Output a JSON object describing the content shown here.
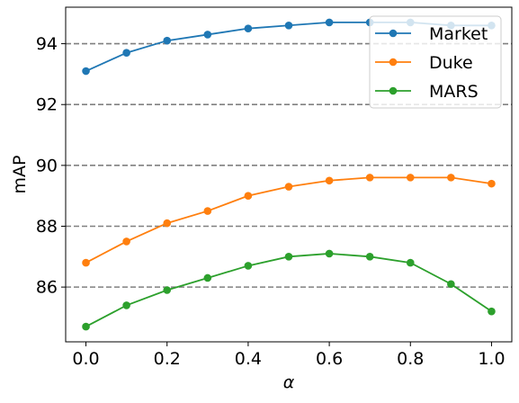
{
  "chart_data": {
    "type": "line",
    "xlabel": "α",
    "ylabel": "mAP",
    "x": [
      0.0,
      0.1,
      0.2,
      0.3,
      0.4,
      0.5,
      0.6,
      0.7,
      0.8,
      0.9,
      1.0
    ],
    "xlim": [
      -0.05,
      1.05
    ],
    "ylim": [
      84.2,
      95.2
    ],
    "x_ticks": [
      {
        "value": 0.0,
        "label": "0.0"
      },
      {
        "value": 0.2,
        "label": "0.2"
      },
      {
        "value": 0.4,
        "label": "0.4"
      },
      {
        "value": 0.6,
        "label": "0.6"
      },
      {
        "value": 0.8,
        "label": "0.8"
      },
      {
        "value": 1.0,
        "label": "1.0"
      }
    ],
    "y_ticks": [
      {
        "value": 86,
        "label": "86"
      },
      {
        "value": 88,
        "label": "88"
      },
      {
        "value": 90,
        "label": "90"
      },
      {
        "value": 92,
        "label": "92"
      },
      {
        "value": 94,
        "label": "94"
      }
    ],
    "grid": "horizontal dashed",
    "grid_color": "#808080",
    "legend_position": "top-right",
    "series": [
      {
        "name": "Market",
        "color": "#1f77b4",
        "values": [
          93.1,
          93.7,
          94.1,
          94.3,
          94.5,
          94.6,
          94.7,
          94.7,
          94.7,
          94.6,
          94.6
        ]
      },
      {
        "name": "Duke",
        "color": "#ff7f0e",
        "values": [
          86.8,
          87.5,
          88.1,
          88.5,
          89.0,
          89.3,
          89.5,
          89.6,
          89.6,
          89.6,
          89.4
        ]
      },
      {
        "name": "MARS",
        "color": "#2ca02c",
        "values": [
          84.7,
          85.4,
          85.9,
          86.3,
          86.7,
          87.0,
          87.1,
          87.0,
          86.8,
          86.1,
          85.2
        ]
      }
    ]
  }
}
